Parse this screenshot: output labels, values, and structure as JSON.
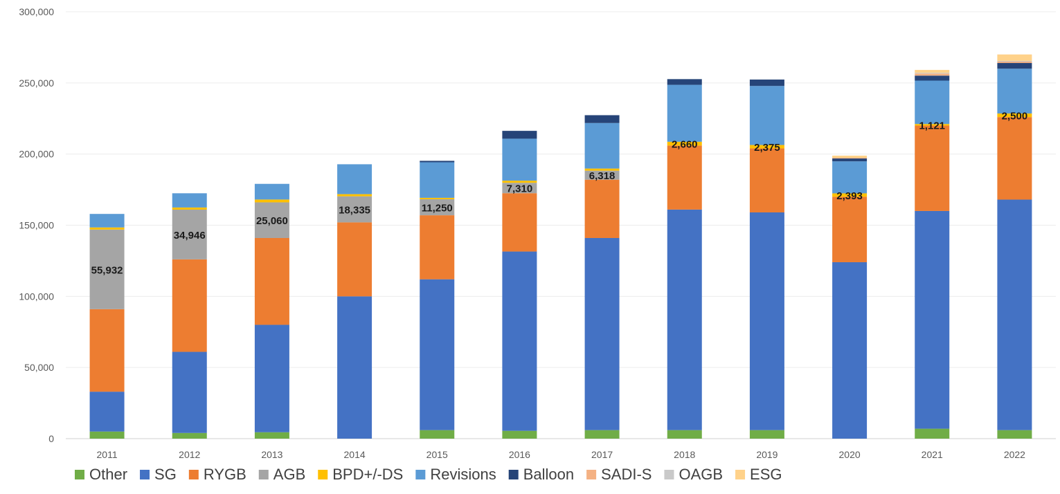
{
  "chart_data": {
    "type": "bar",
    "stacked": true,
    "categories": [
      "2011",
      "2012",
      "2013",
      "2014",
      "2015",
      "2016",
      "2017",
      "2018",
      "2019",
      "2020",
      "2021",
      "2022"
    ],
    "ylim": [
      0,
      300000
    ],
    "yticks": [
      0,
      50000,
      100000,
      150000,
      200000,
      250000,
      300000
    ],
    "ytick_labels": [
      "0",
      "50,000",
      "100,000",
      "150,000",
      "200,000",
      "250,000",
      "300,000"
    ],
    "grid": true,
    "legend_position": "bottom",
    "series": [
      {
        "name": "Other",
        "color": "#70ad47",
        "values": [
          5000,
          4000,
          4500,
          0,
          6000,
          5500,
          6000,
          6000,
          6000,
          0,
          7000,
          6000
        ]
      },
      {
        "name": "SG",
        "color": "#4472c4",
        "values": [
          28000,
          57000,
          75500,
          100000,
          106000,
          126000,
          135000,
          155000,
          153000,
          124000,
          153000,
          162000
        ]
      },
      {
        "name": "RYGB",
        "color": "#ed7d31",
        "values": [
          58000,
          65000,
          61000,
          52000,
          45000,
          41000,
          41000,
          45000,
          45000,
          46000,
          60000,
          58000
        ]
      },
      {
        "name": "AGB",
        "color": "#a5a5a5",
        "values": [
          55932,
          34946,
          25060,
          18335,
          11250,
          7310,
          6318,
          0,
          0,
          0,
          0,
          0
        ]
      },
      {
        "name": "BPD+/-DS",
        "color": "#ffc000",
        "values": [
          1500,
          1500,
          2000,
          1500,
          1000,
          1500,
          1500,
          2660,
          2375,
          2393,
          1121,
          2500
        ]
      },
      {
        "name": "Revisions",
        "color": "#5b9bd5",
        "values": [
          9500,
          10000,
          11000,
          21000,
          25000,
          29500,
          32000,
          40000,
          41500,
          22500,
          30500,
          31500
        ]
      },
      {
        "name": "Balloon",
        "color": "#264478",
        "values": [
          0,
          0,
          0,
          0,
          1000,
          5500,
          5500,
          4000,
          4500,
          2000,
          3500,
          4000
        ]
      },
      {
        "name": "SADI-S",
        "color": "#f4b183",
        "values": [
          0,
          0,
          0,
          0,
          0,
          0,
          0,
          0,
          0,
          500,
          1500,
          1000
        ]
      },
      {
        "name": "OAGB",
        "color": "#c9c9c9",
        "values": [
          0,
          0,
          0,
          0,
          0,
          0,
          0,
          0,
          0,
          0,
          500,
          500
        ]
      },
      {
        "name": "ESG",
        "color": "#ffd28a",
        "values": [
          0,
          0,
          0,
          0,
          0,
          0,
          0,
          0,
          0,
          1500,
          2000,
          4500
        ]
      }
    ],
    "data_labels": [
      {
        "category": "2011",
        "series": "AGB",
        "text": "55,932"
      },
      {
        "category": "2012",
        "series": "AGB",
        "text": "34,946"
      },
      {
        "category": "2013",
        "series": "AGB",
        "text": "25,060"
      },
      {
        "category": "2014",
        "series": "AGB",
        "text": "18,335"
      },
      {
        "category": "2015",
        "series": "AGB",
        "text": "11,250"
      },
      {
        "category": "2016",
        "series": "AGB",
        "text": "7,310"
      },
      {
        "category": "2017",
        "series": "AGB",
        "text": "6,318"
      },
      {
        "category": "2018",
        "series": "BPD+/-DS",
        "text": "2,660"
      },
      {
        "category": "2019",
        "series": "BPD+/-DS",
        "text": "2,375"
      },
      {
        "category": "2020",
        "series": "BPD+/-DS",
        "text": "2,393"
      },
      {
        "category": "2021",
        "series": "BPD+/-DS",
        "text": "1,121"
      },
      {
        "category": "2022",
        "series": "BPD+/-DS",
        "text": "2,500"
      }
    ]
  }
}
